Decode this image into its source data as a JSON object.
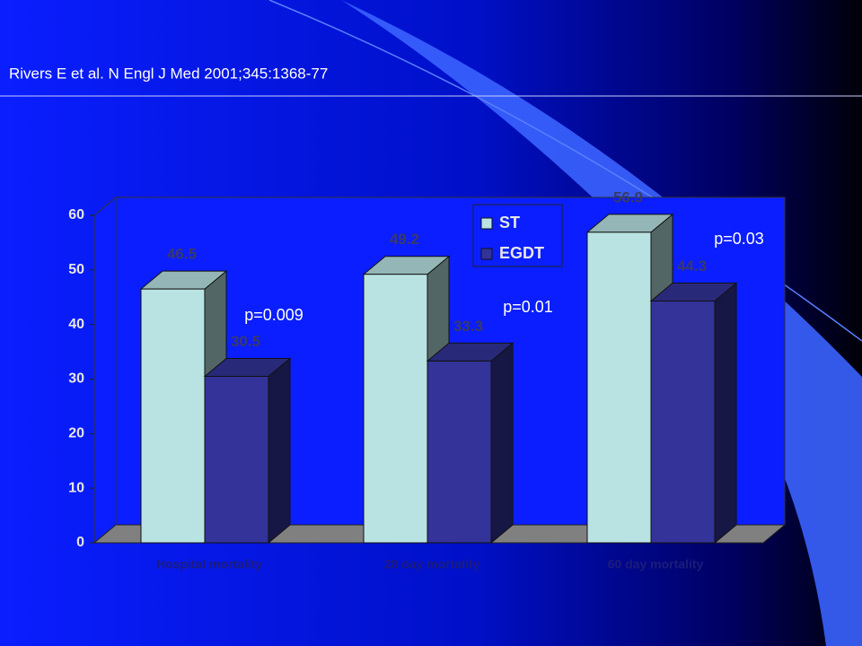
{
  "chart_data": {
    "type": "bar3d",
    "source": "Rivers E et al. N Engl J Med 2001;345:1368-77",
    "categories": [
      "Hospital mortality",
      "28 day mortality",
      "60 day mortality"
    ],
    "series": [
      {
        "name": "ST",
        "color": "#b9e3e3",
        "values": [
          46.5,
          49.2,
          56.9
        ]
      },
      {
        "name": "EGDT",
        "color": "#333399",
        "values": [
          30.5,
          33.3,
          44.3
        ]
      }
    ],
    "ylim": [
      0,
      60
    ],
    "yticks": [
      0,
      10,
      20,
      30,
      40,
      50,
      60
    ],
    "annotations": [
      "p=0.009",
      "p=0.01",
      "p=0.03"
    ],
    "legend": "top-right"
  }
}
